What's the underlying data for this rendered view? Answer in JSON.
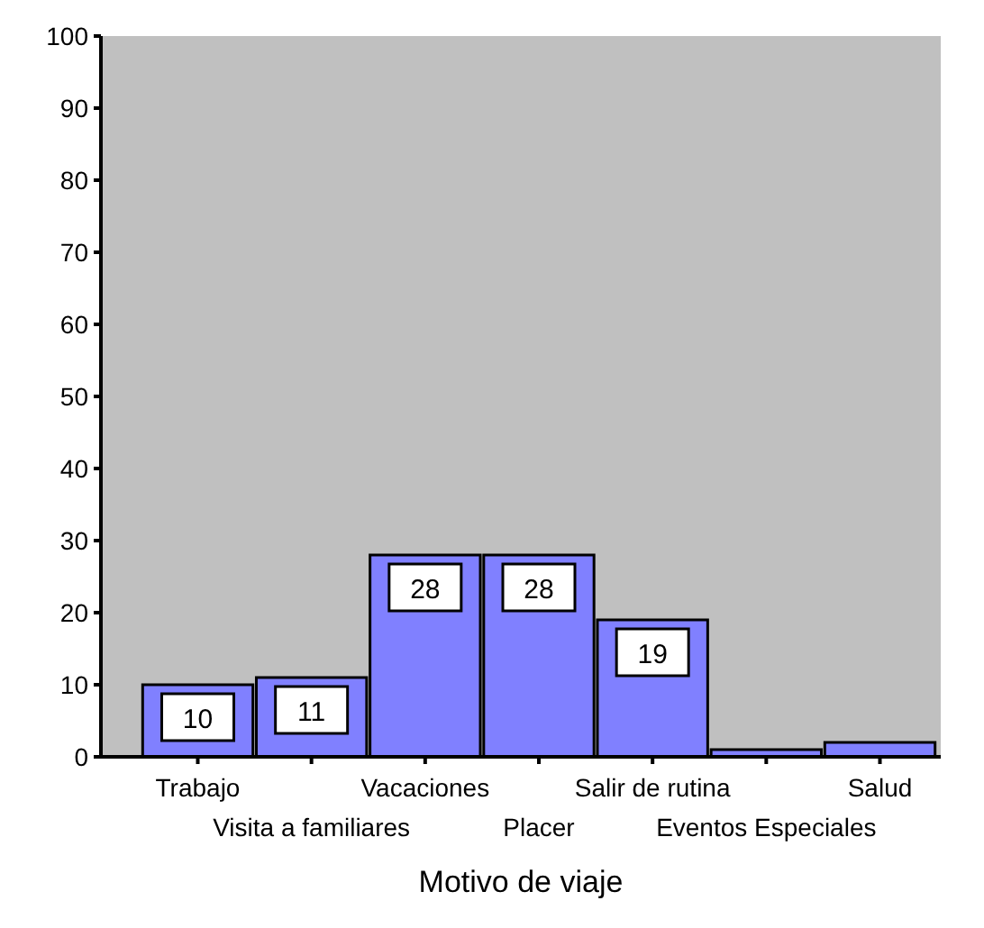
{
  "chart_data": {
    "type": "bar",
    "xlabel": "Motivo de viaje",
    "categories": [
      "Trabajo",
      "Visita a familiares",
      "Vacaciones",
      "Placer",
      "Salir de rutina",
      "Eventos Especiales",
      "Salud"
    ],
    "values": [
      10,
      11,
      28,
      28,
      19,
      1,
      2
    ],
    "value_labels": [
      "10",
      "11",
      "28",
      "28",
      "19",
      null,
      null
    ],
    "color": "#8080ff",
    "ylim": [
      0,
      100
    ],
    "yticks": [
      0,
      10,
      20,
      30,
      40,
      50,
      60,
      70,
      80,
      90,
      100
    ],
    "grid": false
  }
}
